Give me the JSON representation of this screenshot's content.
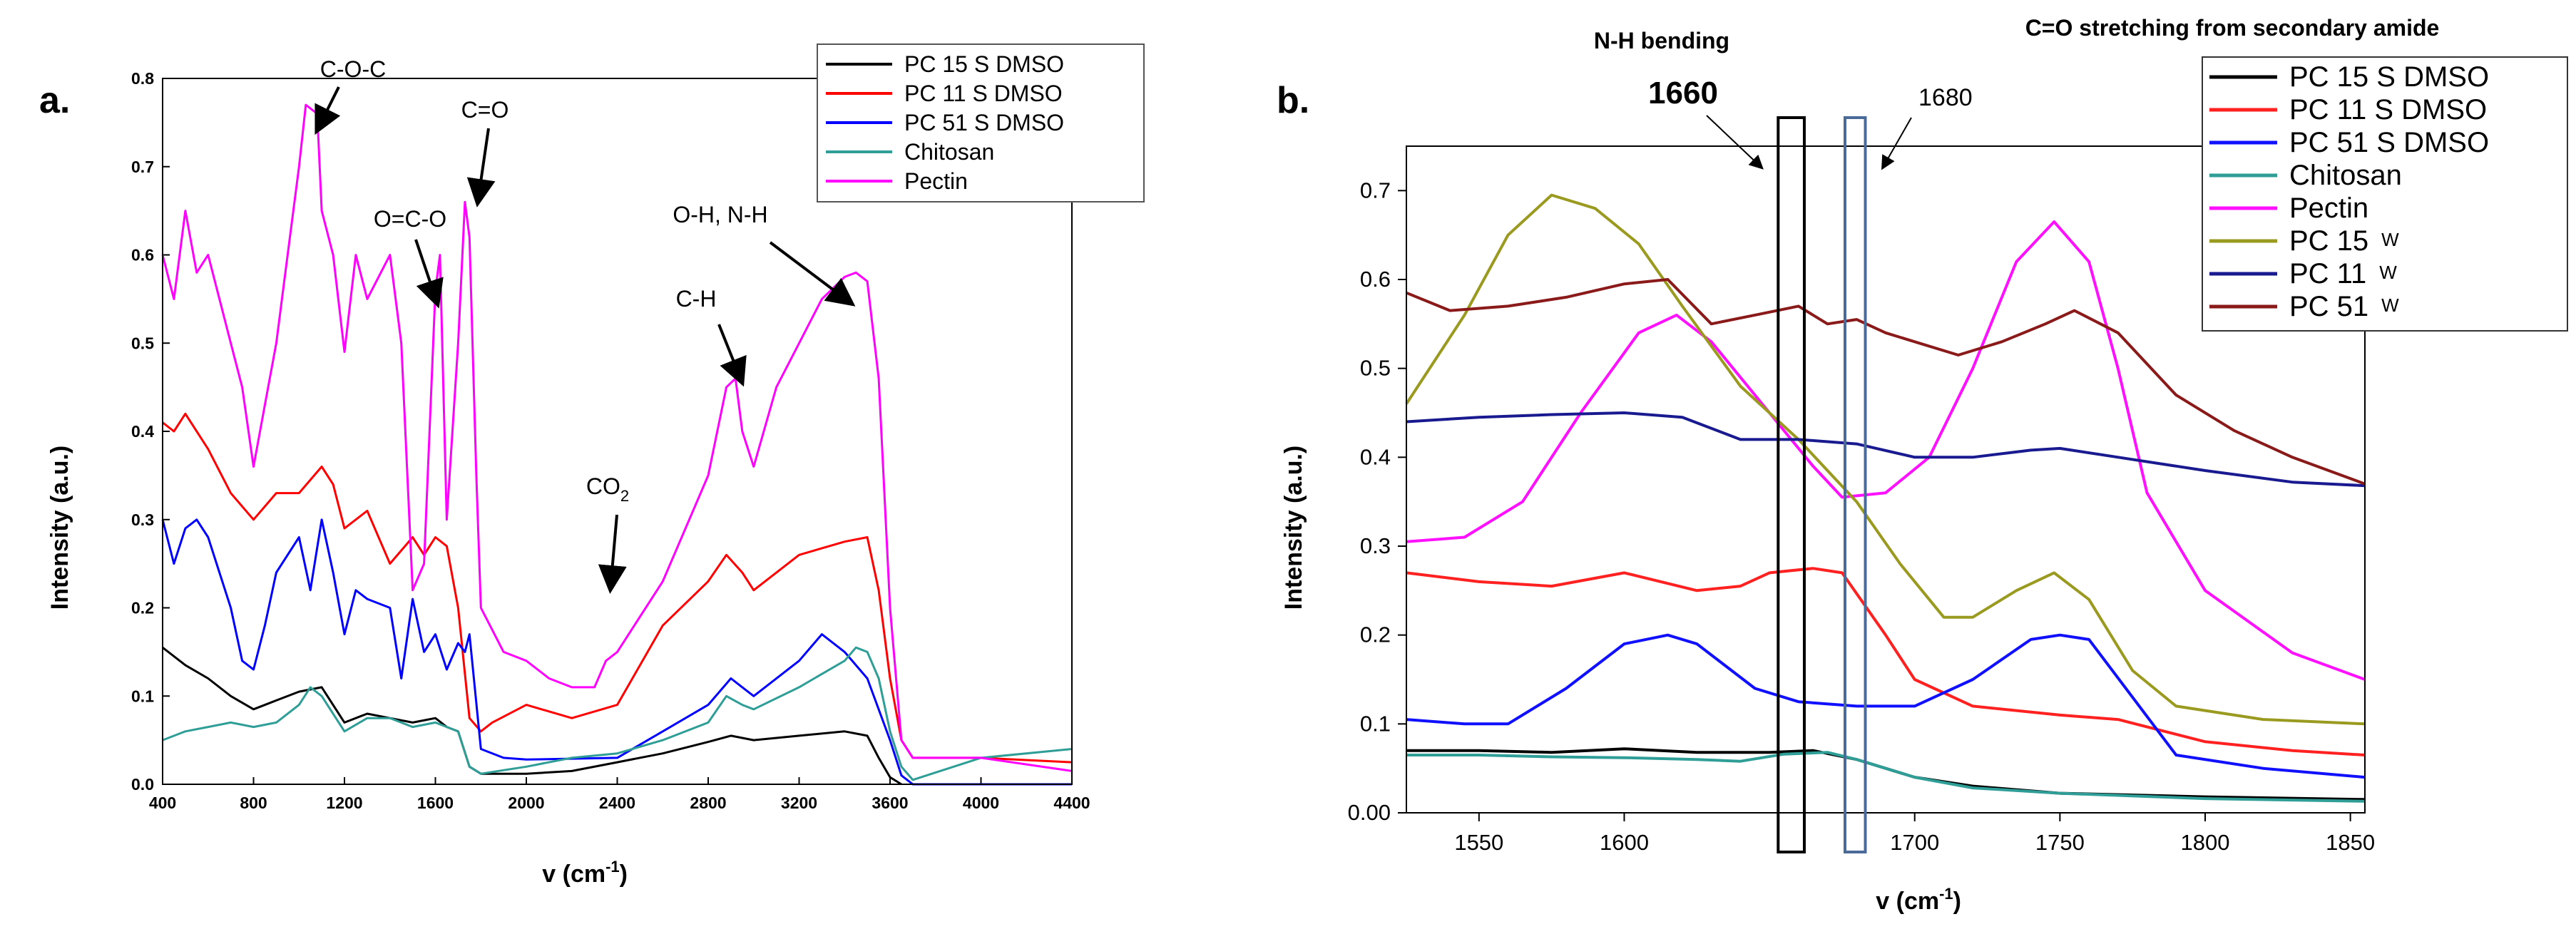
{
  "chart_data": [
    {
      "panel_label": "a.",
      "type": "line",
      "xlabel": "v (cm",
      "xlabel_sup": "-1",
      "xlabel_close": ")",
      "ylabel": "Intensity (a.u.)",
      "xlim": [
        400,
        4400
      ],
      "ylim": [
        0,
        0.8
      ],
      "xticks": [
        400,
        800,
        1200,
        1600,
        2000,
        2400,
        2800,
        3200,
        3600,
        4000,
        4400
      ],
      "xtick_labels": [
        "400",
        "800",
        "1200",
        "1600",
        "2000",
        "2400",
        "2800",
        "3200",
        "3600",
        "4000",
        "4400"
      ],
      "yticks": [
        0,
        0.1,
        0.2,
        0.3,
        0.4,
        0.5,
        0.6,
        0.7,
        0.8
      ],
      "ytick_labels": [
        "0.0",
        "0.1",
        "0.2",
        "0.3",
        "0.4",
        "0.5",
        "0.6",
        "0.7",
        "0.8"
      ],
      "legend_position": "top-right",
      "annotations": [
        {
          "label": "C-O-C",
          "x": 1050,
          "y": 0.76
        },
        {
          "label": "O=C-O",
          "x": 1610,
          "y": 0.56
        },
        {
          "label": "C=O",
          "x": 1740,
          "y": 0.65
        },
        {
          "label": "O-H, N-H",
          "x": 3300,
          "y": 0.57
        },
        {
          "label": "C-H",
          "x": 2930,
          "y": 0.47
        },
        {
          "label": "CO",
          "sub": "2",
          "x": 2350,
          "y": 0.15
        }
      ],
      "series": [
        {
          "name": "PC 15 S DMSO",
          "color": "#000000",
          "x": [
            400,
            500,
            600,
            700,
            800,
            900,
            1000,
            1100,
            1200,
            1300,
            1400,
            1500,
            1600,
            1650,
            1700,
            1750,
            1800,
            2000,
            2200,
            2400,
            2600,
            2800,
            2900,
            3000,
            3200,
            3400,
            3500,
            3550,
            3600,
            3650
          ],
          "y": [
            0.155,
            0.135,
            0.12,
            0.1,
            0.085,
            0.095,
            0.105,
            0.11,
            0.07,
            0.08,
            0.075,
            0.07,
            0.075,
            0.065,
            0.06,
            0.02,
            0.012,
            0.012,
            0.015,
            0.025,
            0.035,
            0.048,
            0.055,
            0.05,
            0.055,
            0.06,
            0.055,
            0.03,
            0.008,
            0.0
          ]
        },
        {
          "name": "PC 11 S DMSO",
          "color": "#ff0000",
          "x": [
            400,
            450,
            500,
            600,
            700,
            800,
            900,
            1000,
            1100,
            1150,
            1200,
            1300,
            1400,
            1500,
            1550,
            1600,
            1650,
            1700,
            1750,
            1800,
            1850,
            2000,
            2200,
            2400,
            2600,
            2800,
            2880,
            2950,
            3000,
            3200,
            3400,
            3500,
            3550,
            3600,
            3650,
            3700,
            4000,
            4400
          ],
          "y": [
            0.41,
            0.4,
            0.42,
            0.38,
            0.33,
            0.3,
            0.33,
            0.33,
            0.36,
            0.34,
            0.29,
            0.31,
            0.25,
            0.28,
            0.26,
            0.28,
            0.27,
            0.2,
            0.075,
            0.06,
            0.07,
            0.09,
            0.075,
            0.09,
            0.18,
            0.23,
            0.26,
            0.24,
            0.22,
            0.26,
            0.275,
            0.28,
            0.22,
            0.12,
            0.05,
            0.03,
            0.03,
            0.025
          ]
        },
        {
          "name": "PC 51 S DMSO",
          "color": "#0000ff",
          "x": [
            400,
            450,
            500,
            550,
            600,
            700,
            750,
            800,
            850,
            900,
            1000,
            1050,
            1100,
            1150,
            1200,
            1250,
            1300,
            1400,
            1450,
            1500,
            1550,
            1600,
            1650,
            1700,
            1730,
            1750,
            1800,
            1900,
            2000,
            2400,
            2600,
            2800,
            2900,
            2950,
            3000,
            3200,
            3300,
            3400,
            3500,
            3600,
            3650,
            3700,
            4000,
            4400
          ],
          "y": [
            0.3,
            0.25,
            0.29,
            0.3,
            0.28,
            0.2,
            0.14,
            0.13,
            0.18,
            0.24,
            0.28,
            0.22,
            0.3,
            0.24,
            0.17,
            0.22,
            0.21,
            0.2,
            0.12,
            0.21,
            0.15,
            0.17,
            0.13,
            0.16,
            0.15,
            0.17,
            0.04,
            0.03,
            0.028,
            0.03,
            0.06,
            0.09,
            0.12,
            0.11,
            0.1,
            0.14,
            0.17,
            0.15,
            0.12,
            0.05,
            0.01,
            0.0,
            0.0,
            0.0
          ]
        },
        {
          "name": "Chitosan",
          "color": "#2e9e96",
          "x": [
            400,
            500,
            600,
            700,
            800,
            900,
            1000,
            1050,
            1100,
            1200,
            1300,
            1400,
            1500,
            1600,
            1650,
            1700,
            1750,
            1800,
            2000,
            2200,
            2400,
            2600,
            2800,
            2880,
            2950,
            3000,
            3200,
            3300,
            3400,
            3450,
            3500,
            3550,
            3600,
            3650,
            3700,
            4000,
            4400
          ],
          "y": [
            0.05,
            0.06,
            0.065,
            0.07,
            0.065,
            0.07,
            0.09,
            0.11,
            0.1,
            0.06,
            0.075,
            0.075,
            0.065,
            0.07,
            0.065,
            0.06,
            0.02,
            0.012,
            0.02,
            0.03,
            0.035,
            0.05,
            0.07,
            0.1,
            0.09,
            0.085,
            0.11,
            0.125,
            0.14,
            0.155,
            0.15,
            0.12,
            0.06,
            0.02,
            0.005,
            0.03,
            0.04
          ]
        },
        {
          "name": "Pectin",
          "color": "#ff00ff",
          "x": [
            400,
            450,
            500,
            550,
            600,
            700,
            750,
            800,
            850,
            900,
            950,
            1000,
            1030,
            1080,
            1100,
            1150,
            1200,
            1250,
            1300,
            1400,
            1450,
            1500,
            1550,
            1600,
            1620,
            1650,
            1700,
            1730,
            1750,
            1780,
            1800,
            1900,
            2000,
            2100,
            2200,
            2300,
            2350,
            2400,
            2600,
            2800,
            2880,
            2920,
            2950,
            3000,
            3100,
            3200,
            3300,
            3400,
            3450,
            3500,
            3550,
            3600,
            3650,
            3700,
            4000,
            4400
          ],
          "y": [
            0.6,
            0.55,
            0.65,
            0.58,
            0.6,
            0.5,
            0.45,
            0.36,
            0.43,
            0.5,
            0.6,
            0.7,
            0.77,
            0.76,
            0.65,
            0.6,
            0.49,
            0.6,
            0.55,
            0.6,
            0.5,
            0.22,
            0.25,
            0.56,
            0.6,
            0.3,
            0.5,
            0.66,
            0.62,
            0.35,
            0.2,
            0.15,
            0.14,
            0.12,
            0.11,
            0.11,
            0.14,
            0.15,
            0.23,
            0.35,
            0.45,
            0.46,
            0.4,
            0.36,
            0.45,
            0.5,
            0.55,
            0.575,
            0.58,
            0.57,
            0.46,
            0.2,
            0.05,
            0.03,
            0.03,
            0.015
          ]
        }
      ]
    },
    {
      "panel_label": "b.",
      "type": "line",
      "xlabel": "v (cm",
      "xlabel_sup": "-1",
      "xlabel_close": ")",
      "ylabel": "Intensity (a.u.)",
      "xlim": [
        1525,
        1855
      ],
      "ylim": [
        0,
        0.75
      ],
      "xticks": [
        1550,
        1600,
        1700,
        1750,
        1800,
        1850
      ],
      "xtick_labels": [
        "1550",
        "1600",
        "1700",
        "1750",
        "1800",
        "1850"
      ],
      "yticks": [
        0,
        0.1,
        0.2,
        0.3,
        0.4,
        0.5,
        0.6,
        0.7
      ],
      "ytick_labels": [
        "0.00",
        "0.1",
        "0.2",
        "0.3",
        "0.4",
        "0.5",
        "0.6",
        "0.7"
      ],
      "legend_position": "top-right",
      "title_left": "N-H bending",
      "title_right": "C=O stretching from secondary amide",
      "marker_1660_label": "1660",
      "marker_1680_label": "1680",
      "boxes": [
        {
          "label": "1660",
          "x_from": 1653,
          "x_to": 1662,
          "color": "#000000"
        },
        {
          "label": "1680",
          "x_from": 1676,
          "x_to": 1683,
          "color": "#4a6a9a"
        }
      ],
      "series": [
        {
          "name": "PC 15 S DMSO",
          "suffix": "",
          "color": "#000000",
          "x": [
            1525,
            1550,
            1575,
            1600,
            1625,
            1650,
            1665,
            1680,
            1700,
            1720,
            1750,
            1800,
            1855
          ],
          "y": [
            0.07,
            0.07,
            0.068,
            0.072,
            0.068,
            0.068,
            0.07,
            0.06,
            0.04,
            0.03,
            0.022,
            0.018,
            0.015
          ]
        },
        {
          "name": "PC 11 S DMSO",
          "suffix": "",
          "color": "#ff2020",
          "x": [
            1525,
            1550,
            1575,
            1600,
            1625,
            1640,
            1650,
            1665,
            1675,
            1690,
            1700,
            1720,
            1750,
            1770,
            1800,
            1830,
            1855
          ],
          "y": [
            0.27,
            0.26,
            0.255,
            0.27,
            0.25,
            0.255,
            0.27,
            0.275,
            0.27,
            0.2,
            0.15,
            0.12,
            0.11,
            0.105,
            0.08,
            0.07,
            0.065
          ]
        },
        {
          "name": "PC 51 S DMSO",
          "suffix": "",
          "color": "#1010ff",
          "x": [
            1525,
            1545,
            1560,
            1580,
            1600,
            1615,
            1625,
            1645,
            1660,
            1680,
            1700,
            1720,
            1740,
            1750,
            1760,
            1775,
            1790,
            1820,
            1855
          ],
          "y": [
            0.105,
            0.1,
            0.1,
            0.14,
            0.19,
            0.2,
            0.19,
            0.14,
            0.125,
            0.12,
            0.12,
            0.15,
            0.195,
            0.2,
            0.195,
            0.13,
            0.065,
            0.05,
            0.04
          ]
        },
        {
          "name": "Chitosan",
          "suffix": "",
          "color": "#2e9e96",
          "x": [
            1525,
            1550,
            1575,
            1600,
            1625,
            1640,
            1655,
            1670,
            1680,
            1700,
            1720,
            1750,
            1800,
            1855
          ],
          "y": [
            0.065,
            0.065,
            0.063,
            0.062,
            0.06,
            0.058,
            0.066,
            0.068,
            0.06,
            0.04,
            0.028,
            0.022,
            0.016,
            0.013
          ]
        },
        {
          "name": "Pectin",
          "suffix": "",
          "color": "#ff10ff",
          "x": [
            1525,
            1545,
            1565,
            1585,
            1605,
            1618,
            1630,
            1650,
            1665,
            1675,
            1690,
            1705,
            1720,
            1735,
            1748,
            1760,
            1770,
            1780,
            1800,
            1830,
            1855
          ],
          "y": [
            0.305,
            0.31,
            0.35,
            0.45,
            0.54,
            0.56,
            0.53,
            0.45,
            0.39,
            0.355,
            0.36,
            0.4,
            0.5,
            0.62,
            0.665,
            0.62,
            0.5,
            0.36,
            0.25,
            0.18,
            0.15
          ]
        },
        {
          "name": "PC 15",
          "suffix": "W",
          "color": "#9a9a20",
          "x": [
            1525,
            1545,
            1560,
            1575,
            1590,
            1605,
            1620,
            1640,
            1660,
            1680,
            1695,
            1710,
            1720,
            1735,
            1748,
            1760,
            1775,
            1790,
            1820,
            1855
          ],
          "y": [
            0.46,
            0.56,
            0.65,
            0.695,
            0.68,
            0.64,
            0.57,
            0.48,
            0.42,
            0.35,
            0.28,
            0.22,
            0.22,
            0.25,
            0.27,
            0.24,
            0.16,
            0.12,
            0.105,
            0.1
          ]
        },
        {
          "name": "PC 11",
          "suffix": "W",
          "color": "#1a1a90",
          "x": [
            1525,
            1550,
            1575,
            1600,
            1620,
            1640,
            1660,
            1680,
            1700,
            1720,
            1740,
            1750,
            1770,
            1800,
            1830,
            1855
          ],
          "y": [
            0.44,
            0.445,
            0.448,
            0.45,
            0.445,
            0.42,
            0.42,
            0.415,
            0.4,
            0.4,
            0.408,
            0.41,
            0.4,
            0.385,
            0.372,
            0.368
          ]
        },
        {
          "name": "PC 51",
          "suffix": "W",
          "color": "#8a1a1a",
          "x": [
            1525,
            1540,
            1560,
            1580,
            1600,
            1615,
            1630,
            1645,
            1660,
            1670,
            1680,
            1690,
            1700,
            1715,
            1730,
            1745,
            1755,
            1770,
            1790,
            1810,
            1830,
            1855
          ],
          "y": [
            0.585,
            0.565,
            0.57,
            0.58,
            0.595,
            0.6,
            0.55,
            0.56,
            0.57,
            0.55,
            0.555,
            0.54,
            0.53,
            0.515,
            0.53,
            0.55,
            0.565,
            0.54,
            0.47,
            0.43,
            0.4,
            0.37
          ]
        }
      ]
    }
  ]
}
